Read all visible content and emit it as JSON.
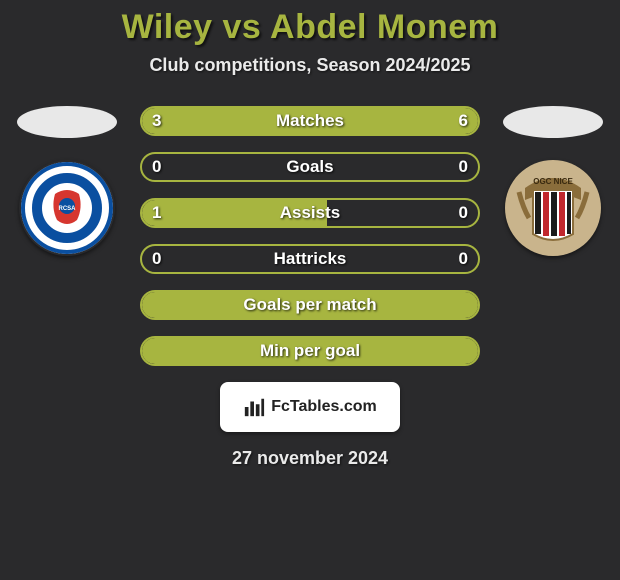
{
  "title": {
    "text": "Wiley vs Abdel Monem",
    "color": "#a7b540"
  },
  "subtitle": "Club competitions, Season 2024/2025",
  "date_line": "27 november 2024",
  "attribution": "FcTables.com",
  "colors": {
    "background": "#2a2a2c",
    "bar_border": "#a7b540",
    "bar_fill": "#a7b540",
    "ellipse": "#e8e8e8"
  },
  "left_club": {
    "name": "RC Strasbourg Alsace",
    "badge_bg": "#ffffff",
    "badge_ring": "#0a4fa0",
    "badge_inner": "#d6362f"
  },
  "right_club": {
    "name": "OGC Nice",
    "badge_bg": "#c9b48c",
    "stripe1": "#1b1b1b",
    "stripe2": "#c1272d"
  },
  "bars": [
    {
      "label": "Matches",
      "left": "3",
      "right": "6",
      "left_pct": 33,
      "right_pct": 67
    },
    {
      "label": "Goals",
      "left": "0",
      "right": "0",
      "left_pct": 0,
      "right_pct": 0
    },
    {
      "label": "Assists",
      "left": "1",
      "right": "0",
      "left_pct": 55,
      "right_pct": 0
    },
    {
      "label": "Hattricks",
      "left": "0",
      "right": "0",
      "left_pct": 0,
      "right_pct": 0
    },
    {
      "label": "Goals per match",
      "left": "",
      "right": "",
      "left_pct": 100,
      "right_pct": 0,
      "full": true
    },
    {
      "label": "Min per goal",
      "left": "",
      "right": "",
      "left_pct": 100,
      "right_pct": 0,
      "full": true
    }
  ]
}
